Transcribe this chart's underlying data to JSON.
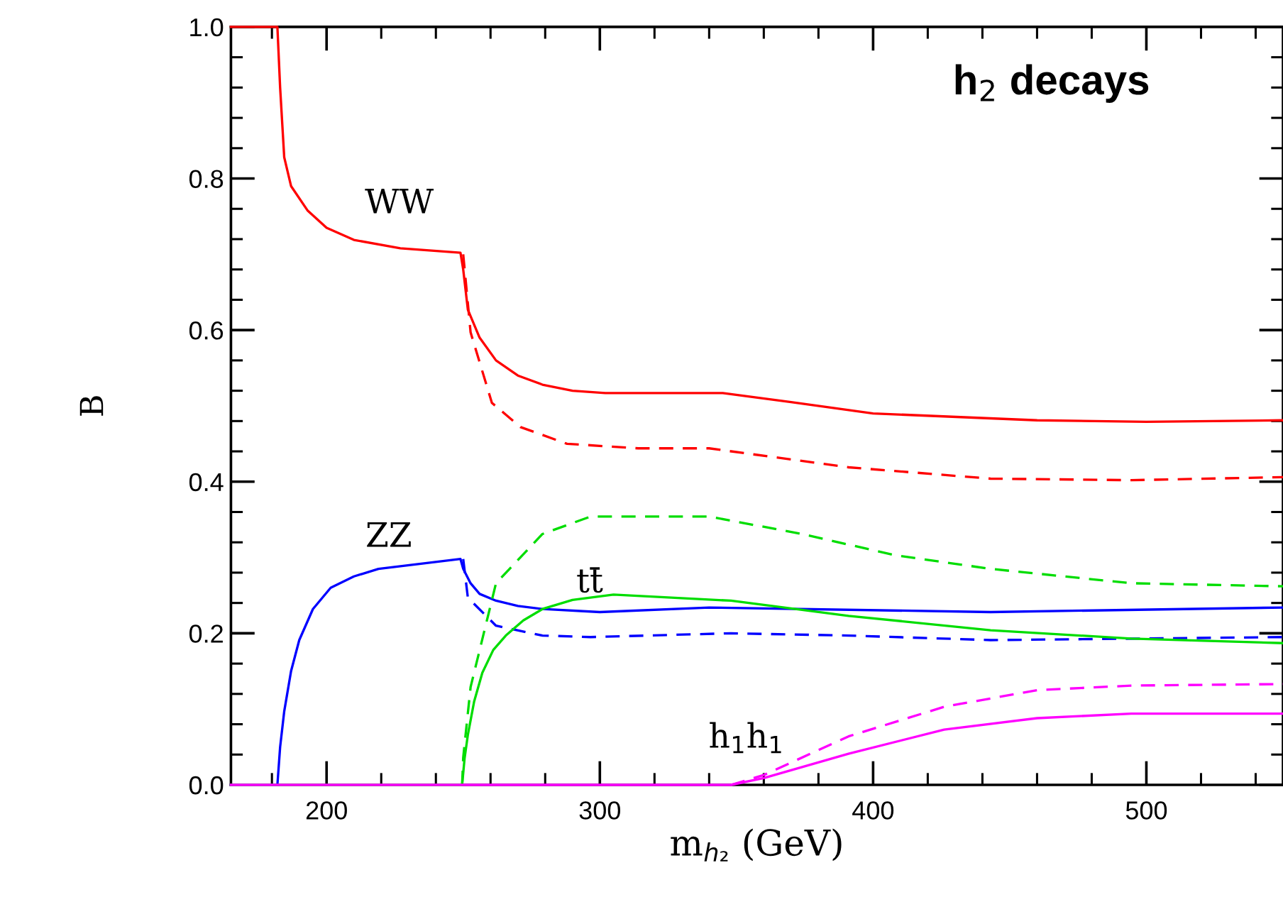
{
  "chart_data": {
    "type": "line",
    "xlabel": "m$_{h₂}$ (GeV)",
    "ylabel": "B",
    "xlim": [
      165,
      550
    ],
    "ylim": [
      0,
      1.0
    ],
    "xticks": [
      {
        "value": 180,
        "label": null
      },
      200,
      {
        "value": 220,
        "label": null
      },
      {
        "value": 240,
        "label": null
      },
      {
        "value": 260,
        "label": null
      },
      {
        "value": 280,
        "label": null
      },
      300,
      {
        "value": 320,
        "label": null
      },
      {
        "value": 340,
        "label": null
      },
      {
        "value": 360,
        "label": null
      },
      {
        "value": 380,
        "label": null
      },
      400,
      {
        "value": 420,
        "label": null
      },
      {
        "value": 440,
        "label": null
      },
      {
        "value": 460,
        "label": null
      },
      {
        "value": 480,
        "label": null
      },
      500,
      {
        "value": 520,
        "label": null
      },
      {
        "value": 540,
        "label": null
      }
    ],
    "yticks": [
      {
        "value": 0,
        "label": "0.0"
      },
      {
        "value": 0.04,
        "label": null
      },
      {
        "value": 0.08,
        "label": null
      },
      {
        "value": 0.12,
        "label": null
      },
      {
        "value": 0.16,
        "label": null
      },
      0.2,
      {
        "value": 0.24,
        "label": null
      },
      {
        "value": 0.28,
        "label": null
      },
      {
        "value": 0.32,
        "label": null
      },
      {
        "value": 0.36,
        "label": null
      },
      0.4,
      {
        "value": 0.44,
        "label": null
      },
      {
        "value": 0.48,
        "label": null
      },
      {
        "value": 0.52,
        "label": null
      },
      {
        "value": 0.56,
        "label": null
      },
      0.6,
      {
        "value": 0.64,
        "label": null
      },
      {
        "value": 0.68,
        "label": null
      },
      {
        "value": 0.72,
        "label": null
      },
      {
        "value": 0.76,
        "label": null
      },
      0.8,
      {
        "value": 0.84,
        "label": null
      },
      {
        "value": 0.88,
        "label": null
      },
      {
        "value": 0.92,
        "label": null
      },
      {
        "value": 0.96,
        "label": null
      },
      {
        "value": 1.0,
        "label": "1.0"
      }
    ],
    "grid": false,
    "marker": "none",
    "series": [
      {
        "color": "#ff0000",
        "line_style": "solid",
        "x": [
          165,
          182,
          183,
          184.5,
          187,
          193,
          200,
          210,
          227,
          249,
          250,
          251.7,
          256,
          262,
          270,
          279,
          290,
          302,
          345,
          370,
          400,
          460,
          500,
          550
        ],
        "values": [
          1.0,
          1.0,
          0.92,
          0.828,
          0.79,
          0.758,
          0.735,
          0.719,
          0.708,
          0.702,
          0.68,
          0.627,
          0.59,
          0.56,
          0.54,
          0.528,
          0.52,
          0.517,
          0.517,
          0.505,
          0.49,
          0.481,
          0.479,
          0.481
        ]
      },
      {
        "color": "#ff0000",
        "line_style": "dashed",
        "x": [
          250,
          252.7,
          260.5,
          271,
          288,
          314,
          340,
          391,
          443,
          494.5,
          550
        ],
        "values": [
          0.7,
          0.597,
          0.504,
          0.472,
          0.45,
          0.444,
          0.444,
          0.419,
          0.404,
          0.402,
          0.406
        ]
      },
      {
        "color": "#0000ff",
        "line_style": "solid",
        "x": [
          165,
          182,
          183,
          184.5,
          187,
          190,
          195,
          201.5,
          210,
          219,
          249,
          250,
          252.7,
          256,
          262,
          270,
          279,
          300,
          340,
          443,
          550
        ],
        "values": [
          0,
          0,
          0.05,
          0.097,
          0.15,
          0.191,
          0.232,
          0.26,
          0.275,
          0.285,
          0.298,
          0.285,
          0.266,
          0.252,
          0.243,
          0.236,
          0.232,
          0.228,
          0.234,
          0.228,
          0.234
        ]
      },
      {
        "color": "#0000ff",
        "line_style": "dashed",
        "x": [
          250,
          251.7,
          262,
          279,
          296.6,
          348,
          391,
          443,
          550
        ],
        "values": [
          0.298,
          0.247,
          0.21,
          0.197,
          0.195,
          0.2,
          0.197,
          0.191,
          0.195
        ]
      },
      {
        "color": "#00dd00",
        "line_style": "solid",
        "x": [
          165,
          249.6,
          250.5,
          251.7,
          254,
          257,
          261,
          265.6,
          272,
          279,
          290,
          305,
          348,
          391,
          443,
          494.5,
          550
        ],
        "values": [
          0,
          0,
          0.035,
          0.066,
          0.11,
          0.148,
          0.178,
          0.197,
          0.217,
          0.232,
          0.244,
          0.251,
          0.243,
          0.223,
          0.204,
          0.193,
          0.187
        ]
      },
      {
        "color": "#00dd00",
        "line_style": "dashed",
        "x": [
          249.6,
          250,
          252.7,
          262,
          279,
          296.6,
          330.7,
          340,
          374,
          408,
          443,
          494.5,
          550
        ],
        "values": [
          0,
          0.036,
          0.129,
          0.266,
          0.331,
          0.354,
          0.354,
          0.354,
          0.331,
          0.303,
          0.285,
          0.266,
          0.262
        ]
      },
      {
        "color": "#ff00ff",
        "line_style": "solid",
        "x": [
          165,
          348,
          360,
          391,
          426,
          460,
          494.5,
          550
        ],
        "values": [
          0,
          0,
          0.009,
          0.041,
          0.073,
          0.088,
          0.094,
          0.094
        ]
      },
      {
        "color": "#ff00ff",
        "line_style": "dashed",
        "x": [
          348,
          360,
          391,
          426,
          460,
          494.5,
          550
        ],
        "values": [
          0,
          0.013,
          0.064,
          0.103,
          0.125,
          0.131,
          0.133
        ]
      }
    ],
    "annotations": [
      "WW",
      "ZZ",
      "tt̄",
      "h$_{1}$h$_{1}$",
      "h$_{2}$ decays"
    ]
  }
}
